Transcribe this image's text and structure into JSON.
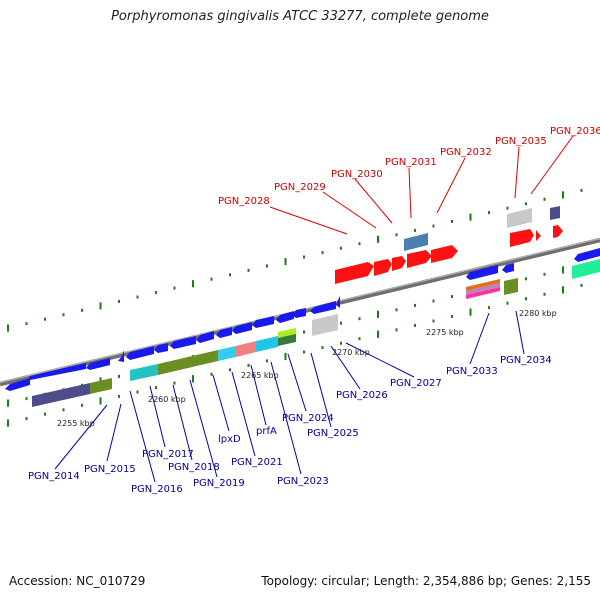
{
  "title": "Porphyromonas gingivalis ATCC 33277, complete genome",
  "footer": {
    "accession": "Accession: NC_010729",
    "topology": "Topology: circular; Length: 2,354,886 bp; Genes: 2,155"
  },
  "colors": {
    "forward_gene": "#ff0000",
    "reverse_gene": "#0000ee",
    "forward_label": "#cc0000",
    "reverse_label": "#000099",
    "backbone": "#808080",
    "tick": "#1f7a1f"
  },
  "scale_labels": [
    "2255 kbp",
    "2260 kbp",
    "2265 kbp",
    "2270 kbp",
    "2275 kbp",
    "2280 kbp"
  ],
  "top_labels": [
    "PGN_2028",
    "PGN_2029",
    "PGN_2030",
    "PGN_2031",
    "PGN_2032",
    "PGN_2035",
    "PGN_2036"
  ],
  "bottom_labels": [
    "PGN_2014",
    "PGN_2015",
    "PGN_2016",
    "PGN_2017",
    "PGN_2018",
    "PGN_2019",
    "lpxD",
    "PGN_2021",
    "prfA",
    "PGN_2023",
    "PGN_2024",
    "PGN_2025",
    "PGN_2026",
    "PGN_2027",
    "PGN_2033",
    "PGN_2034"
  ]
}
